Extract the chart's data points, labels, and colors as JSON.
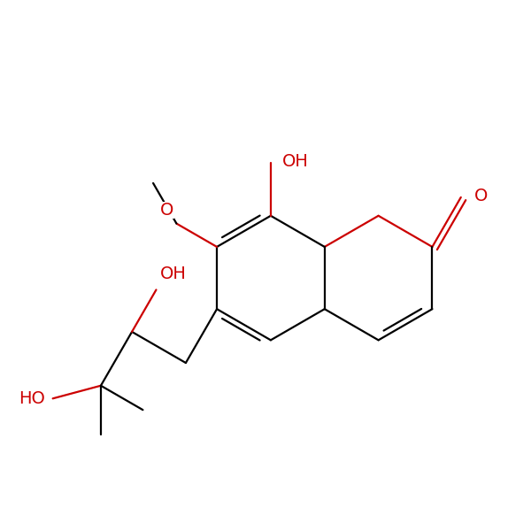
{
  "bg_color": "#ffffff",
  "bond_color": "#000000",
  "heteroatom_color": "#cc0000",
  "line_width": 1.6,
  "font_size": 14,
  "figsize": [
    6.0,
    6.0
  ],
  "dpi": 100,
  "BL": 1.0,
  "xlim": [
    -1.0,
    7.5
  ],
  "ylim": [
    0.5,
    7.5
  ]
}
